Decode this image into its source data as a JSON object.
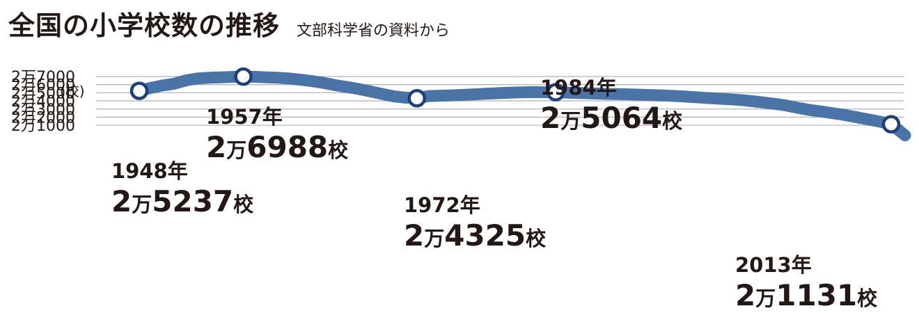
{
  "chart_data": {
    "type": "line",
    "title": "全国の小学校数の推移",
    "subtitle": "文部科学省の資料から",
    "ylabel": "(校)",
    "ylim": [
      1000,
      27000
    ],
    "y_ticks": [
      {
        "value": 27000,
        "label": "2万7000"
      },
      {
        "value": 26000,
        "label": "2万6000"
      },
      {
        "value": 25000,
        "label": "2万5000"
      },
      {
        "value": 24000,
        "label": "2万4000"
      },
      {
        "value": 23000,
        "label": "2万3000"
      },
      {
        "value": 22000,
        "label": "2万2000"
      },
      {
        "value": 21000,
        "label": "2万1000"
      }
    ],
    "xlim": [
      1948,
      2013
    ],
    "grid": true,
    "line_color": "#4a74a8",
    "marker_stroke": "#1f3f7a",
    "x": [
      1948,
      1949,
      1950,
      1951,
      1952,
      1953,
      1954,
      1955,
      1956,
      1957,
      1958,
      1959,
      1960,
      1961,
      1962,
      1963,
      1964,
      1965,
      1966,
      1967,
      1968,
      1969,
      1970,
      1971,
      1972,
      1973,
      1974,
      1975,
      1976,
      1977,
      1978,
      1979,
      1980,
      1981,
      1982,
      1983,
      1984,
      1985,
      1986,
      1987,
      1988,
      1989,
      1990,
      1991,
      1992,
      1993,
      1994,
      1995,
      1996,
      1997,
      1998,
      1999,
      2000,
      2001,
      2002,
      2003,
      2004,
      2005,
      2006,
      2007,
      2008,
      2009,
      2010,
      2011,
      2012,
      2013
    ],
    "values": [
      25237,
      25600,
      25900,
      26100,
      26500,
      26750,
      26850,
      26900,
      26950,
      26988,
      26960,
      26900,
      26850,
      26750,
      26600,
      26420,
      26200,
      25920,
      25700,
      25450,
      25150,
      24850,
      24560,
      24400,
      24325,
      24600,
      24640,
      24680,
      24740,
      24810,
      24890,
      24950,
      25010,
      25050,
      25080,
      25070,
      25064,
      25020,
      24970,
      24920,
      24880,
      24840,
      24820,
      24780,
      24730,
      24680,
      24620,
      24550,
      24460,
      24370,
      24290,
      24200,
      24110,
      23960,
      23800,
      23633,
      23420,
      23123,
      22878,
      22693,
      22476,
      22258,
      22000,
      21721,
      21460,
      21131
    ],
    "annotations": [
      {
        "x": 1948,
        "value": 25237,
        "year": "1948年",
        "man": "2",
        "unit_man": "万",
        "rest": "5237",
        "unit": "校"
      },
      {
        "x": 1957,
        "value": 26988,
        "year": "1957年",
        "man": "2",
        "unit_man": "万",
        "rest": "6988",
        "unit": "校"
      },
      {
        "x": 1972,
        "value": 24325,
        "year": "1972年",
        "man": "2",
        "unit_man": "万",
        "rest": "4325",
        "unit": "校"
      },
      {
        "x": 1984,
        "value": 25064,
        "year": "1984年",
        "man": "2",
        "unit_man": "万",
        "rest": "5064",
        "unit": "校"
      },
      {
        "x": 2013,
        "value": 21131,
        "year": "2013年",
        "man": "2",
        "unit_man": "万",
        "rest": "1131",
        "unit": "校"
      }
    ]
  }
}
